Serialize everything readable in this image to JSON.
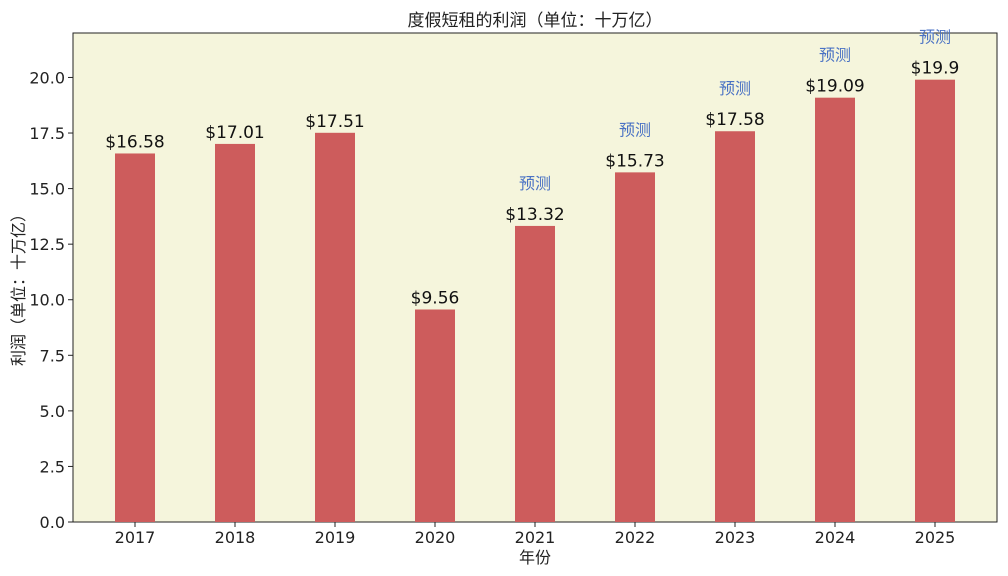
{
  "chart_data": {
    "type": "bar",
    "title": "度假短租的利润（单位：十万亿）",
    "xlabel": "年份",
    "ylabel": "利润（单位：十万亿）",
    "categories": [
      "2017",
      "2018",
      "2019",
      "2020",
      "2021",
      "2022",
      "2023",
      "2024",
      "2025"
    ],
    "values": [
      16.58,
      17.01,
      17.51,
      9.56,
      13.32,
      15.73,
      17.58,
      19.09,
      19.9
    ],
    "value_labels": [
      "$16.58",
      "$17.01",
      "$17.51",
      "$9.56",
      "$13.32",
      "$15.73",
      "$17.58",
      "$19.09",
      "$19.9"
    ],
    "forecast": [
      false,
      false,
      false,
      false,
      true,
      true,
      true,
      true,
      true
    ],
    "forecast_label": "预测",
    "ylim": [
      0,
      22
    ],
    "yticks": [
      0,
      2.5,
      5,
      7.5,
      10,
      12.5,
      15,
      17.5,
      20
    ],
    "ytick_labels": [
      "0.0",
      "2.5",
      "5.0",
      "7.5",
      "10.0",
      "12.5",
      "15.0",
      "17.5",
      "20.0"
    ],
    "grid": false,
    "colors": {
      "bar": "#cd5c5c",
      "plot_background": "#f5f5dc",
      "forecast_text": "#4a72c4"
    }
  }
}
